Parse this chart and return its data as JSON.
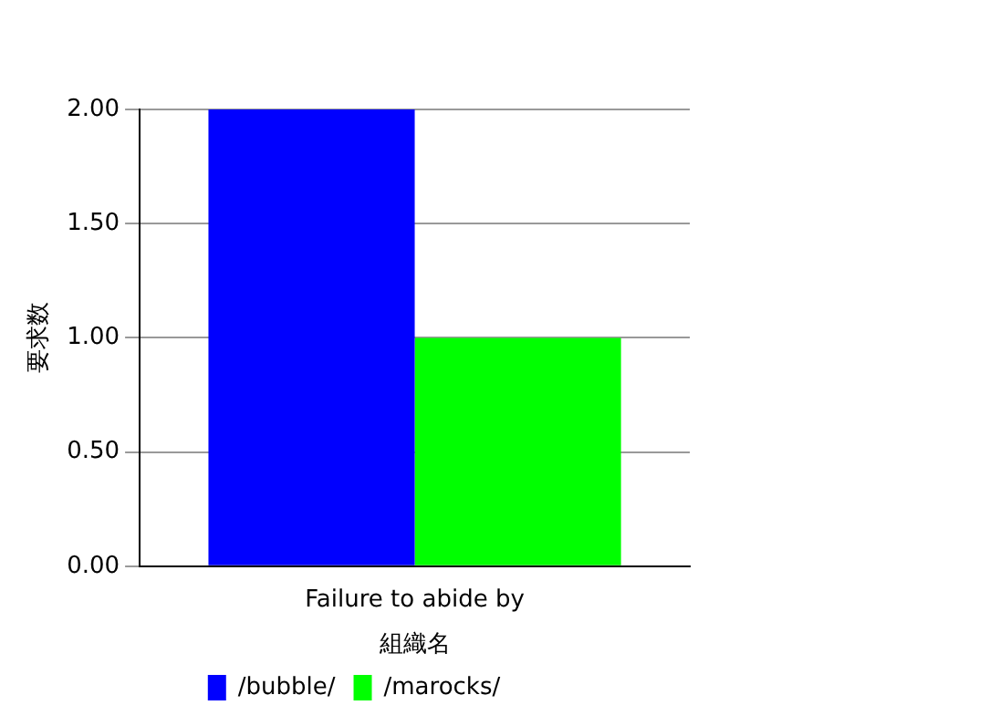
{
  "chart_data": {
    "type": "bar",
    "annotations": [
      "組織名"
    ],
    "ylabel": "要求数",
    "categories": [
      "Failure to abide by"
    ],
    "series": [
      {
        "name": "/bubble/",
        "color": "#0000ff",
        "values": [
          2
        ]
      },
      {
        "name": "/marocks/",
        "color": "#00ff00",
        "values": [
          1
        ]
      }
    ],
    "ylim": [
      0,
      2
    ],
    "yticks": [
      {
        "value": 0,
        "label": "0.00"
      },
      {
        "value": 0.5,
        "label": "0.50"
      },
      {
        "value": 1,
        "label": "1.00"
      },
      {
        "value": 1.5,
        "label": "1.50"
      },
      {
        "value": 2,
        "label": "2.00"
      }
    ],
    "grid": "y",
    "legend": "bottom"
  }
}
